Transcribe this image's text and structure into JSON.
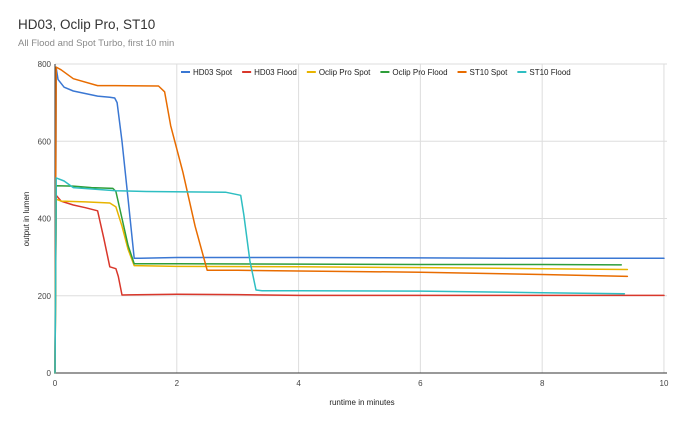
{
  "chart_data": {
    "type": "line",
    "title": "HD03, Oclip Pro, ST10",
    "subtitle": "All Flood and Spot Turbo, first 10 min",
    "xlabel": "runtime in minutes",
    "ylabel": "output in lumen",
    "xlim": [
      0,
      10.05
    ],
    "ylim": [
      0,
      800
    ],
    "xticks": [
      0,
      2,
      4,
      6,
      8,
      10
    ],
    "yticks": [
      0,
      200,
      400,
      600,
      800
    ],
    "grid": true,
    "legend": "top-center",
    "series": [
      {
        "name": "HD03 Spot",
        "color": "#3a77d3",
        "points": [
          [
            0,
            0
          ],
          [
            0.02,
            790
          ],
          [
            0.05,
            760
          ],
          [
            0.15,
            740
          ],
          [
            0.3,
            730
          ],
          [
            0.7,
            717
          ],
          [
            0.9,
            714
          ],
          [
            0.98,
            712
          ],
          [
            1.02,
            700
          ],
          [
            1.1,
            600
          ],
          [
            1.2,
            450
          ],
          [
            1.3,
            297
          ],
          [
            1.4,
            297
          ],
          [
            2,
            299
          ],
          [
            4,
            299
          ],
          [
            6,
            298
          ],
          [
            8,
            297
          ],
          [
            10,
            297
          ]
        ]
      },
      {
        "name": "HD03 Flood",
        "color": "#d9372b",
        "points": [
          [
            0,
            0
          ],
          [
            0.02,
            460
          ],
          [
            0.1,
            445
          ],
          [
            0.3,
            435
          ],
          [
            0.5,
            428
          ],
          [
            0.7,
            420
          ],
          [
            0.8,
            350
          ],
          [
            0.9,
            275
          ],
          [
            1.0,
            270
          ],
          [
            1.04,
            250
          ],
          [
            1.1,
            202
          ],
          [
            2,
            204
          ],
          [
            3,
            203
          ],
          [
            4,
            201
          ],
          [
            6,
            201
          ],
          [
            8,
            201
          ],
          [
            10,
            201
          ]
        ]
      },
      {
        "name": "Oclip Pro Spot",
        "color": "#e8b400",
        "points": [
          [
            0,
            0
          ],
          [
            0.02,
            450
          ],
          [
            0.1,
            445
          ],
          [
            0.5,
            443
          ],
          [
            0.9,
            440
          ],
          [
            1.0,
            430
          ],
          [
            1.1,
            380
          ],
          [
            1.2,
            320
          ],
          [
            1.3,
            278
          ],
          [
            2,
            276
          ],
          [
            4,
            275
          ],
          [
            6,
            273
          ],
          [
            8,
            270
          ],
          [
            9.4,
            268
          ]
        ]
      },
      {
        "name": "Oclip Pro Flood",
        "color": "#2e9e3a",
        "points": [
          [
            0,
            0
          ],
          [
            0.02,
            485
          ],
          [
            0.3,
            484
          ],
          [
            0.6,
            480
          ],
          [
            0.95,
            478
          ],
          [
            1.0,
            470
          ],
          [
            1.1,
            400
          ],
          [
            1.2,
            330
          ],
          [
            1.3,
            283
          ],
          [
            2,
            283
          ],
          [
            4,
            282
          ],
          [
            6,
            281
          ],
          [
            8,
            281
          ],
          [
            9.3,
            280
          ]
        ]
      },
      {
        "name": "ST10 Spot",
        "color": "#e86c00",
        "points": [
          [
            0,
            0
          ],
          [
            0.02,
            792
          ],
          [
            0.1,
            785
          ],
          [
            0.3,
            762
          ],
          [
            0.7,
            744
          ],
          [
            1.0,
            744
          ],
          [
            1.7,
            743
          ],
          [
            1.8,
            728
          ],
          [
            1.9,
            640
          ],
          [
            2.1,
            520
          ],
          [
            2.3,
            380
          ],
          [
            2.5,
            266
          ],
          [
            3,
            266
          ],
          [
            4,
            264
          ],
          [
            6,
            261
          ],
          [
            8,
            255
          ],
          [
            9.4,
            250
          ]
        ]
      },
      {
        "name": "ST10 Flood",
        "color": "#2ebec2",
        "points": [
          [
            0,
            0
          ],
          [
            0.02,
            505
          ],
          [
            0.15,
            497
          ],
          [
            0.3,
            480
          ],
          [
            1.0,
            472
          ],
          [
            1.5,
            470
          ],
          [
            2.8,
            468
          ],
          [
            3.05,
            460
          ],
          [
            3.1,
            410
          ],
          [
            3.2,
            290
          ],
          [
            3.3,
            215
          ],
          [
            3.4,
            213
          ],
          [
            4,
            213
          ],
          [
            6,
            212
          ],
          [
            8,
            208
          ],
          [
            9.35,
            205
          ]
        ]
      }
    ]
  }
}
